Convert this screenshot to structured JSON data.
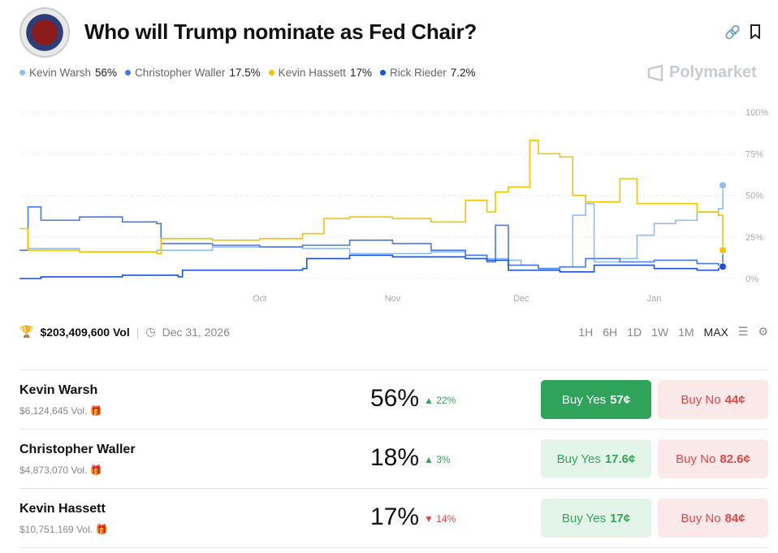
{
  "header": {
    "title": "Who will Trump nominate as Fed Chair?",
    "brand": "Polymarket",
    "logo_text": "Board of Governors of the Federal Reserve System"
  },
  "legend": [
    {
      "name": "Kevin Warsh",
      "value": "56%",
      "color": "#8fbcf5"
    },
    {
      "name": "Christopher Waller",
      "value": "17.5%",
      "color": "#4a78e8"
    },
    {
      "name": "Kevin Hassett",
      "value": "17%",
      "color": "#f5c300"
    },
    {
      "name": "Rick Rieder",
      "value": "7.2%",
      "color": "#1c4fe0"
    }
  ],
  "meta": {
    "volume": "$203,409,600 Vol",
    "end_date": "Dec 31, 2026"
  },
  "ranges": [
    "1H",
    "6H",
    "1D",
    "1W",
    "1M",
    "MAX"
  ],
  "active_range": "MAX",
  "chart_data": {
    "type": "line",
    "x_ticks": [
      "Oct",
      "Nov",
      "Dec",
      "Jan"
    ],
    "y_ticks": [
      "0%",
      "25%",
      "50%",
      "75%",
      "100%"
    ],
    "ylim": [
      0,
      100
    ],
    "xlim": [
      "2025-08-06",
      "2026-01-17"
    ],
    "grid": true,
    "series": [
      {
        "name": "Kevin Warsh",
        "color": "#8fbcf5",
        "points": [
          [
            "2025-08-06",
            17
          ],
          [
            "2025-08-08",
            18
          ],
          [
            "2025-08-20",
            16
          ],
          [
            "2025-09-07",
            17
          ],
          [
            "2025-09-20",
            19
          ],
          [
            "2025-10-01",
            19
          ],
          [
            "2025-10-11",
            18
          ],
          [
            "2025-10-22",
            15
          ],
          [
            "2025-11-01",
            15
          ],
          [
            "2025-11-10",
            16
          ],
          [
            "2025-11-18",
            14
          ],
          [
            "2025-11-23",
            12
          ],
          [
            "2025-11-28",
            11
          ],
          [
            "2025-12-01",
            8
          ],
          [
            "2025-12-05",
            6
          ],
          [
            "2025-12-10",
            7
          ],
          [
            "2025-12-13",
            38
          ],
          [
            "2025-12-16",
            45
          ],
          [
            "2025-12-18",
            10
          ],
          [
            "2025-12-24",
            12
          ],
          [
            "2025-12-28",
            26
          ],
          [
            "2026-01-01",
            33
          ],
          [
            "2026-01-06",
            35
          ],
          [
            "2026-01-11",
            40
          ],
          [
            "2026-01-16",
            42
          ],
          [
            "2026-01-17",
            56
          ]
        ]
      },
      {
        "name": "Christopher Waller",
        "color": "#4a78e8",
        "points": [
          [
            "2025-08-06",
            17
          ],
          [
            "2025-08-08",
            43
          ],
          [
            "2025-08-11",
            35
          ],
          [
            "2025-08-20",
            37
          ],
          [
            "2025-08-30",
            34
          ],
          [
            "2025-09-07",
            33
          ],
          [
            "2025-09-08",
            21
          ],
          [
            "2025-09-20",
            20
          ],
          [
            "2025-10-01",
            19
          ],
          [
            "2025-10-11",
            20
          ],
          [
            "2025-10-22",
            23
          ],
          [
            "2025-11-01",
            21
          ],
          [
            "2025-11-10",
            17
          ],
          [
            "2025-11-18",
            14
          ],
          [
            "2025-11-23",
            10
          ],
          [
            "2025-11-25",
            32
          ],
          [
            "2025-11-28",
            8
          ],
          [
            "2025-12-05",
            6
          ],
          [
            "2025-12-10",
            7
          ],
          [
            "2025-12-16",
            12
          ],
          [
            "2025-12-24",
            10
          ],
          [
            "2026-01-01",
            11
          ],
          [
            "2026-01-11",
            9
          ],
          [
            "2026-01-16",
            8
          ],
          [
            "2026-01-17",
            17.5
          ]
        ]
      },
      {
        "name": "Kevin Hassett",
        "color": "#f5c300",
        "points": [
          [
            "2025-08-06",
            30
          ],
          [
            "2025-08-08",
            17
          ],
          [
            "2025-08-20",
            16
          ],
          [
            "2025-09-07",
            15
          ],
          [
            "2025-09-08",
            24
          ],
          [
            "2025-09-20",
            23
          ],
          [
            "2025-10-01",
            24
          ],
          [
            "2025-10-11",
            27
          ],
          [
            "2025-10-16",
            36
          ],
          [
            "2025-10-22",
            37
          ],
          [
            "2025-11-01",
            36
          ],
          [
            "2025-11-10",
            34
          ],
          [
            "2025-11-18",
            47
          ],
          [
            "2025-11-23",
            40
          ],
          [
            "2025-11-25",
            52
          ],
          [
            "2025-11-28",
            55
          ],
          [
            "2025-12-03",
            83
          ],
          [
            "2025-12-05",
            75
          ],
          [
            "2025-12-10",
            73
          ],
          [
            "2025-12-13",
            50
          ],
          [
            "2025-12-16",
            46
          ],
          [
            "2025-12-24",
            60
          ],
          [
            "2025-12-28",
            45
          ],
          [
            "2026-01-01",
            45
          ],
          [
            "2026-01-11",
            40
          ],
          [
            "2026-01-16",
            38
          ],
          [
            "2026-01-17",
            17
          ]
        ]
      },
      {
        "name": "Rick Rieder",
        "color": "#1c4fe0",
        "points": [
          [
            "2025-08-06",
            0
          ],
          [
            "2025-08-11",
            1
          ],
          [
            "2025-08-30",
            2
          ],
          [
            "2025-09-12",
            1
          ],
          [
            "2025-09-13",
            5
          ],
          [
            "2025-10-01",
            5
          ],
          [
            "2025-10-11",
            6
          ],
          [
            "2025-10-12",
            12
          ],
          [
            "2025-10-22",
            14
          ],
          [
            "2025-11-01",
            13
          ],
          [
            "2025-11-18",
            12
          ],
          [
            "2025-11-23",
            11
          ],
          [
            "2025-11-28",
            5
          ],
          [
            "2025-12-10",
            4
          ],
          [
            "2025-12-18",
            8
          ],
          [
            "2026-01-01",
            6
          ],
          [
            "2026-01-11",
            5
          ],
          [
            "2026-01-16",
            6
          ],
          [
            "2026-01-17",
            7.2
          ]
        ]
      }
    ]
  },
  "outcomes": [
    {
      "name": "Kevin Warsh",
      "volume": "$6,124,645 Vol.",
      "pct": "56%",
      "change": "22%",
      "dir": "up",
      "yes": "Buy Yes",
      "yes_price": "57¢",
      "no": "Buy No",
      "no_price": "44¢"
    },
    {
      "name": "Christopher Waller",
      "volume": "$4,873,070 Vol.",
      "pct": "18%",
      "change": "3%",
      "dir": "up",
      "yes": "Buy Yes",
      "yes_price": "17.6¢",
      "no": "Buy No",
      "no_price": "82.6¢"
    },
    {
      "name": "Kevin Hassett",
      "volume": "$10,751,169 Vol.",
      "pct": "17%",
      "change": "14%",
      "dir": "down",
      "yes": "Buy Yes",
      "yes_price": "17¢",
      "no": "Buy No",
      "no_price": "84¢"
    }
  ]
}
